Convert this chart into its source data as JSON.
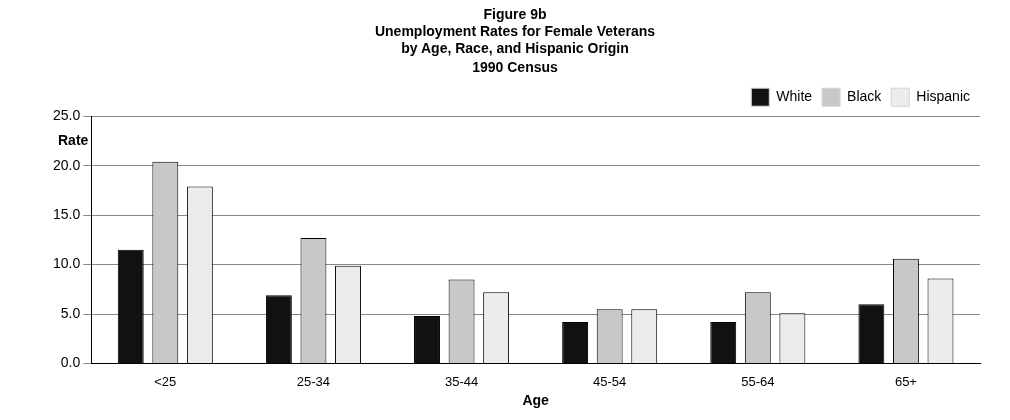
{
  "chart_data": {
    "type": "bar",
    "title": "Figure 9b\nUnemployment Rates for Female Veterans\nby Age, Race, and Hispanic Origin",
    "subtitle": "1990 Census",
    "xlabel": "Age",
    "ylabel": "Rate",
    "categories": [
      "<25",
      "25-34",
      "35-44",
      "45-54",
      "55-64",
      "65+"
    ],
    "series": [
      {
        "name": "White",
        "color": "#111111",
        "values": [
          11.5,
          6.9,
          4.8,
          4.2,
          4.2,
          6.0
        ]
      },
      {
        "name": "Black",
        "color": "#c8c8c8",
        "values": [
          20.4,
          12.7,
          8.5,
          5.5,
          7.2,
          10.6
        ]
      },
      {
        "name": "Hispanic",
        "color": "#ececec",
        "values": [
          17.9,
          9.9,
          7.2,
          5.5,
          5.1,
          8.6
        ]
      }
    ],
    "ylim": [
      0,
      25
    ],
    "yticks": [
      {
        "value": 0,
        "label": "0.0"
      },
      {
        "value": 5,
        "label": "5.0"
      },
      {
        "value": 10,
        "label": "10.0"
      },
      {
        "value": 15,
        "label": "15.0"
      },
      {
        "value": 20,
        "label": "20.0"
      },
      {
        "value": 25,
        "label": "25.0"
      }
    ],
    "grid": "y",
    "legend": "top right"
  }
}
